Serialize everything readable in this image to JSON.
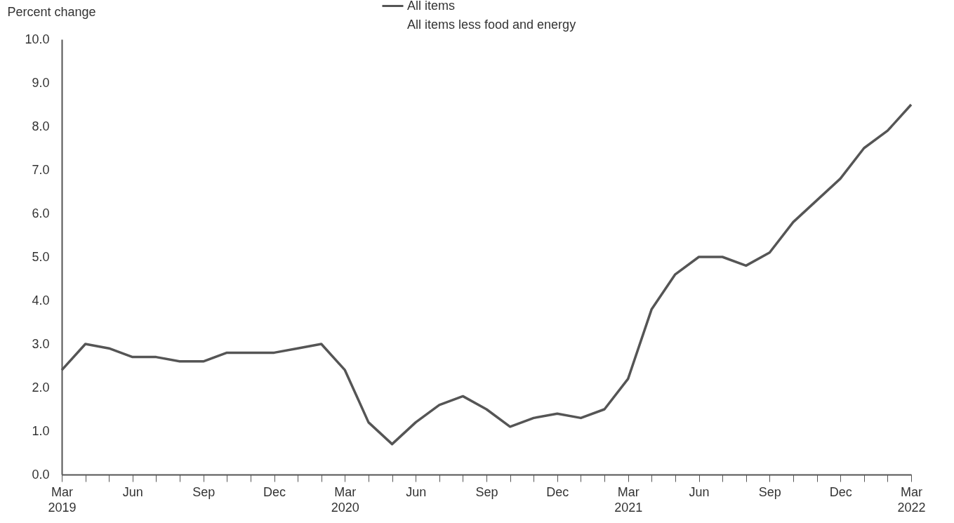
{
  "chart_data": {
    "type": "line",
    "ylabel": "Percent change",
    "categories": [
      "Mar 2019",
      null,
      null,
      "Jun",
      null,
      null,
      "Sep",
      null,
      null,
      "Dec",
      null,
      null,
      "Mar 2020",
      null,
      null,
      "Jun",
      null,
      null,
      "Sep",
      null,
      null,
      "Dec",
      null,
      null,
      "Mar 2021",
      null,
      null,
      "Jun",
      null,
      null,
      "Sep",
      null,
      null,
      "Dec",
      null,
      null,
      "Mar 2022"
    ],
    "series": [
      {
        "name": "All items",
        "color": "#555555",
        "values": [
          2.4,
          3.0,
          2.9,
          2.7,
          2.7,
          2.6,
          2.6,
          2.8,
          2.8,
          2.8,
          2.9,
          3.0,
          2.4,
          1.2,
          0.7,
          1.2,
          1.6,
          1.8,
          1.5,
          1.1,
          1.3,
          1.4,
          1.3,
          1.5,
          2.2,
          3.8,
          4.6,
          5.0,
          5.0,
          4.8,
          5.1,
          5.8,
          6.3,
          6.8,
          7.5,
          7.9,
          8.5
        ]
      }
    ],
    "ylim": [
      0,
      10
    ],
    "yticks": [
      {
        "value": 0,
        "label": "0.0"
      },
      {
        "value": 1,
        "label": "1.0"
      },
      {
        "value": 2,
        "label": "2.0"
      },
      {
        "value": 3,
        "label": "3.0"
      },
      {
        "value": 4,
        "label": "4.0"
      },
      {
        "value": 5,
        "label": "5.0"
      },
      {
        "value": 6,
        "label": "6.0"
      },
      {
        "value": 7,
        "label": "7.0"
      },
      {
        "value": 8,
        "label": "8.0"
      },
      {
        "value": 9,
        "label": "9.0"
      },
      {
        "value": 10,
        "label": "10.0"
      }
    ],
    "annotations": [
      "All items less food and energy"
    ],
    "legend": "top",
    "grid": false,
    "line_style": "solid"
  }
}
